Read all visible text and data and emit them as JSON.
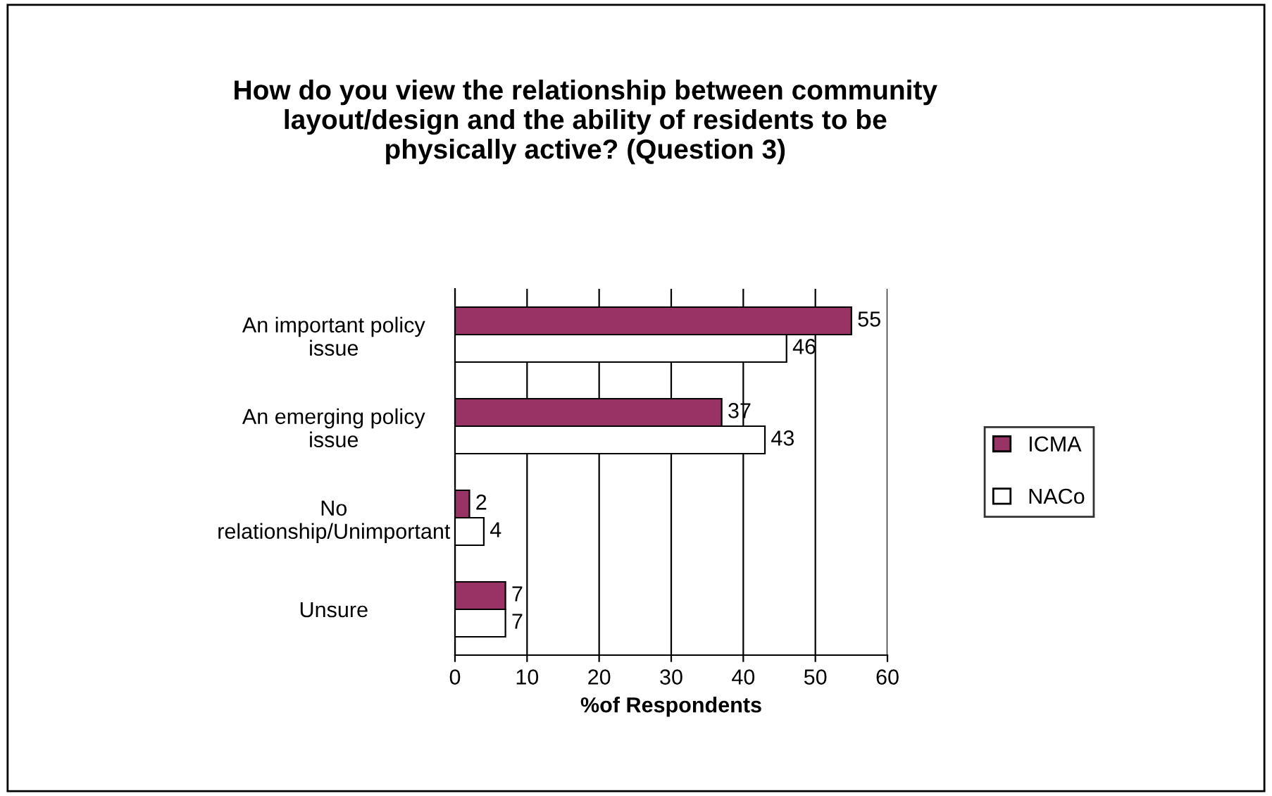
{
  "chart_data": {
    "type": "bar",
    "orientation": "horizontal",
    "title": "How do you view the relationship between community\nlayout/design and the ability of residents to be\nphysically active? (Question 3)",
    "xlabel": "%of Respondents",
    "categories": [
      "An important policy\nissue",
      "An emerging policy\nissue",
      "No\nrelationship/Unimportant",
      "Unsure"
    ],
    "series": [
      {
        "name": "ICMA",
        "color": "#993366",
        "values": [
          55,
          37,
          2,
          7
        ]
      },
      {
        "name": "NACo",
        "color": "#ffffff",
        "values": [
          46,
          43,
          4,
          7
        ]
      }
    ],
    "xlim": [
      0,
      60
    ],
    "xticks": [
      0,
      10,
      20,
      30,
      40,
      50,
      60
    ],
    "grid": "x",
    "legend": "right",
    "data_labels": true
  }
}
